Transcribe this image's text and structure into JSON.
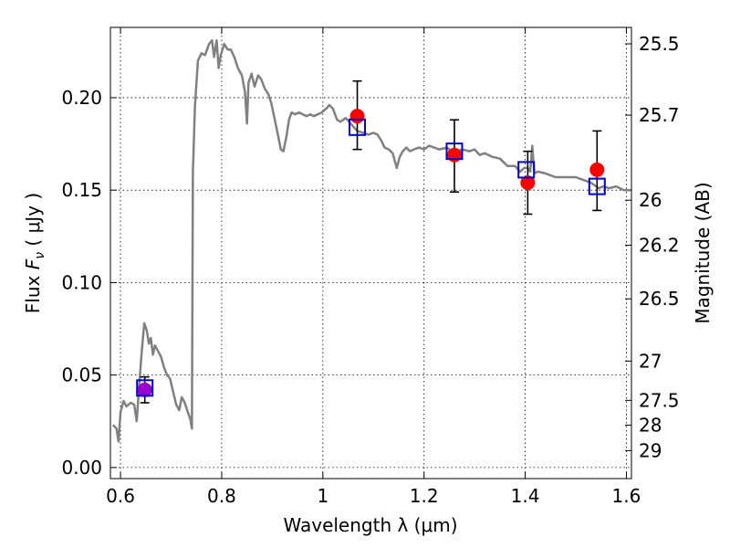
{
  "chart_data": {
    "type": "scatter",
    "xlabel": "Wavelength  λ (μm)",
    "ylabel": "Flux  F_ν  ( μJy )",
    "ylabel_parts": {
      "prefix": "Flux  ",
      "symbol": "F",
      "subscript": "ν",
      "suffix": "  ( μJy )"
    },
    "y2label": "Magnitude (AB)",
    "xlim": [
      0.58,
      1.61
    ],
    "ylim": [
      -0.006,
      0.238
    ],
    "grid": true,
    "x_ticks": [
      {
        "value": 0.6,
        "label": "0.6"
      },
      {
        "value": 0.8,
        "label": "0.8"
      },
      {
        "value": 1.0,
        "label": "1"
      },
      {
        "value": 1.2,
        "label": "1.2"
      },
      {
        "value": 1.4,
        "label": "1.4"
      },
      {
        "value": 1.6,
        "label": "1.6"
      }
    ],
    "y_ticks": [
      {
        "value": 0.0,
        "label": "0.00"
      },
      {
        "value": 0.05,
        "label": "0.05"
      },
      {
        "value": 0.1,
        "label": "0.10"
      },
      {
        "value": 0.15,
        "label": "0.15"
      },
      {
        "value": 0.2,
        "label": "0.20"
      }
    ],
    "y2_ticks": [
      {
        "magnitude": 25.5,
        "label": "25.5"
      },
      {
        "magnitude": 25.7,
        "label": "25.7"
      },
      {
        "magnitude": 26.0,
        "label": "26"
      },
      {
        "magnitude": 26.2,
        "label": "26.2"
      },
      {
        "magnitude": 26.5,
        "label": "26.5"
      },
      {
        "magnitude": 27.0,
        "label": "27"
      },
      {
        "magnitude": 27.5,
        "label": "27.5"
      },
      {
        "magnitude": 28.0,
        "label": "28"
      },
      {
        "magnitude": 29.0,
        "label": "29"
      }
    ],
    "series": [
      {
        "kind": "model_spectrum",
        "color": "#808080",
        "points": [
          [
            0.585,
            0.023
          ],
          [
            0.592,
            0.021
          ],
          [
            0.596,
            0.014
          ],
          [
            0.6,
            0.03
          ],
          [
            0.606,
            0.036
          ],
          [
            0.612,
            0.033
          ],
          [
            0.62,
            0.035
          ],
          [
            0.627,
            0.034
          ],
          [
            0.632,
            0.025
          ],
          [
            0.637,
            0.045
          ],
          [
            0.642,
            0.063
          ],
          [
            0.647,
            0.078
          ],
          [
            0.652,
            0.074
          ],
          [
            0.656,
            0.067
          ],
          [
            0.66,
            0.07
          ],
          [
            0.664,
            0.061
          ],
          [
            0.668,
            0.066
          ],
          [
            0.674,
            0.063
          ],
          [
            0.68,
            0.06
          ],
          [
            0.686,
            0.054
          ],
          [
            0.692,
            0.05
          ],
          [
            0.698,
            0.048
          ],
          [
            0.704,
            0.041
          ],
          [
            0.71,
            0.034
          ],
          [
            0.716,
            0.031
          ],
          [
            0.721,
            0.038
          ],
          [
            0.727,
            0.035
          ],
          [
            0.733,
            0.03
          ],
          [
            0.738,
            0.026
          ],
          [
            0.741,
            0.021
          ],
          [
            0.743,
            0.16
          ],
          [
            0.747,
            0.195
          ],
          [
            0.753,
            0.22
          ],
          [
            0.76,
            0.224
          ],
          [
            0.767,
            0.223
          ],
          [
            0.775,
            0.229
          ],
          [
            0.781,
            0.231
          ],
          [
            0.785,
            0.222
          ],
          [
            0.79,
            0.231
          ],
          [
            0.794,
            0.216
          ],
          [
            0.798,
            0.223
          ],
          [
            0.805,
            0.229
          ],
          [
            0.812,
            0.226
          ],
          [
            0.818,
            0.226
          ],
          [
            0.825,
            0.222
          ],
          [
            0.832,
            0.216
          ],
          [
            0.84,
            0.212
          ],
          [
            0.846,
            0.203
          ],
          [
            0.85,
            0.186
          ],
          [
            0.853,
            0.208
          ],
          [
            0.859,
            0.213
          ],
          [
            0.865,
            0.206
          ],
          [
            0.872,
            0.212
          ],
          [
            0.878,
            0.21
          ],
          [
            0.885,
            0.205
          ],
          [
            0.892,
            0.202
          ],
          [
            0.898,
            0.197
          ],
          [
            0.905,
            0.188
          ],
          [
            0.911,
            0.18
          ],
          [
            0.917,
            0.172
          ],
          [
            0.922,
            0.171
          ],
          [
            0.928,
            0.179
          ],
          [
            0.933,
            0.188
          ],
          [
            0.938,
            0.192
          ],
          [
            0.945,
            0.191
          ],
          [
            0.953,
            0.192
          ],
          [
            0.96,
            0.191
          ],
          [
            0.968,
            0.19
          ],
          [
            0.975,
            0.191
          ],
          [
            0.982,
            0.19
          ],
          [
            0.99,
            0.191
          ],
          [
            0.998,
            0.192
          ],
          [
            1.006,
            0.194
          ],
          [
            1.013,
            0.196
          ],
          [
            1.02,
            0.194
          ],
          [
            1.028,
            0.188
          ],
          [
            1.035,
            0.187
          ],
          [
            1.045,
            0.189
          ],
          [
            1.055,
            0.186
          ],
          [
            1.068,
            0.182
          ],
          [
            1.08,
            0.181
          ],
          [
            1.09,
            0.18
          ],
          [
            1.1,
            0.181
          ],
          [
            1.108,
            0.18
          ],
          [
            1.115,
            0.177
          ],
          [
            1.122,
            0.173
          ],
          [
            1.13,
            0.172
          ],
          [
            1.138,
            0.17
          ],
          [
            1.146,
            0.162
          ],
          [
            1.152,
            0.168
          ],
          [
            1.158,
            0.171
          ],
          [
            1.165,
            0.173
          ],
          [
            1.172,
            0.171
          ],
          [
            1.18,
            0.172
          ],
          [
            1.19,
            0.173
          ],
          [
            1.2,
            0.172
          ],
          [
            1.21,
            0.174
          ],
          [
            1.22,
            0.173
          ],
          [
            1.23,
            0.172
          ],
          [
            1.245,
            0.173
          ],
          [
            1.26,
            0.17
          ],
          [
            1.275,
            0.172
          ],
          [
            1.29,
            0.171
          ],
          [
            1.3,
            0.172
          ],
          [
            1.31,
            0.169
          ],
          [
            1.32,
            0.17
          ],
          [
            1.335,
            0.168
          ],
          [
            1.35,
            0.167
          ],
          [
            1.365,
            0.163
          ],
          [
            1.38,
            0.163
          ],
          [
            1.39,
            0.16
          ],
          [
            1.398,
            0.162
          ],
          [
            1.405,
            0.162
          ],
          [
            1.41,
            0.16
          ],
          [
            1.414,
            0.174
          ],
          [
            1.418,
            0.159
          ],
          [
            1.425,
            0.16
          ],
          [
            1.44,
            0.159
          ],
          [
            1.46,
            0.157
          ],
          [
            1.48,
            0.157
          ],
          [
            1.5,
            0.157
          ],
          [
            1.52,
            0.155
          ],
          [
            1.53,
            0.154
          ],
          [
            1.545,
            0.151
          ],
          [
            1.555,
            0.152
          ],
          [
            1.565,
            0.151
          ],
          [
            1.58,
            0.152
          ],
          [
            1.595,
            0.15
          ],
          [
            1.61,
            0.15
          ]
        ]
      },
      {
        "kind": "model_photometry",
        "marker": "open-square",
        "color": "#0000cc",
        "points": [
          {
            "x": 0.648,
            "y": 0.043
          },
          {
            "x": 1.068,
            "y": 0.184
          },
          {
            "x": 1.26,
            "y": 0.171
          },
          {
            "x": 1.402,
            "y": 0.161
          },
          {
            "x": 1.542,
            "y": 0.152
          }
        ]
      },
      {
        "kind": "observed_photometry",
        "marker": "filled-circle",
        "points": [
          {
            "x": 0.648,
            "y": 0.042,
            "err_low": 0.035,
            "err_high": 0.049,
            "color": "#9900cc"
          },
          {
            "x": 1.068,
            "y": 0.19,
            "err_low": 0.172,
            "err_high": 0.209,
            "color": "#ff0000"
          },
          {
            "x": 1.26,
            "y": 0.169,
            "err_low": 0.149,
            "err_high": 0.188,
            "color": "#ff0000"
          },
          {
            "x": 1.405,
            "y": 0.154,
            "err_low": 0.137,
            "err_high": 0.171,
            "color": "#ff0000"
          },
          {
            "x": 1.542,
            "y": 0.161,
            "err_low": 0.139,
            "err_high": 0.182,
            "color": "#ff0000"
          }
        ]
      }
    ]
  }
}
